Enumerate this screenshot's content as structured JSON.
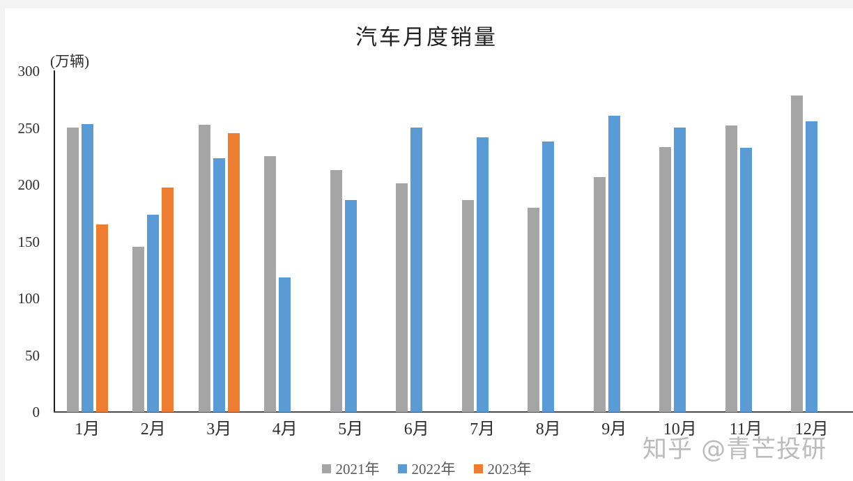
{
  "chart_data": {
    "type": "bar",
    "title": "汽车月度销量",
    "unit_label": "(万辆)",
    "categories": [
      "1月",
      "2月",
      "3月",
      "4月",
      "5月",
      "6月",
      "7月",
      "8月",
      "9月",
      "10月",
      "11月",
      "12月"
    ],
    "series": [
      {
        "name": "2021年",
        "color": "#a5a5a5",
        "values": [
          250.3,
          145.5,
          252.6,
          225.2,
          212.8,
          201.5,
          186.4,
          179.9,
          206.7,
          233.3,
          252.2,
          278.6
        ]
      },
      {
        "name": "2022年",
        "color": "#5b9bd5",
        "values": [
          253.1,
          173.7,
          223.4,
          118.1,
          186.2,
          250.2,
          242.0,
          238.3,
          261.0,
          250.5,
          232.8,
          255.6
        ]
      },
      {
        "name": "2023年",
        "color": "#ed7d31",
        "values": [
          164.9,
          197.6,
          245.1
        ]
      }
    ],
    "ylim": [
      0,
      300
    ],
    "yticks": [
      0,
      50,
      100,
      150,
      200,
      250,
      300
    ],
    "grid": false,
    "legend_position": "bottom"
  },
  "watermark": {
    "text": "知乎 @青芒投研"
  },
  "page": {
    "background": "#ffffff",
    "border_strip_color": "#f3f3f3",
    "axis_color": "#1c1c1c",
    "text_color": "#2e2e2e",
    "legend_text_color": "#595959"
  }
}
